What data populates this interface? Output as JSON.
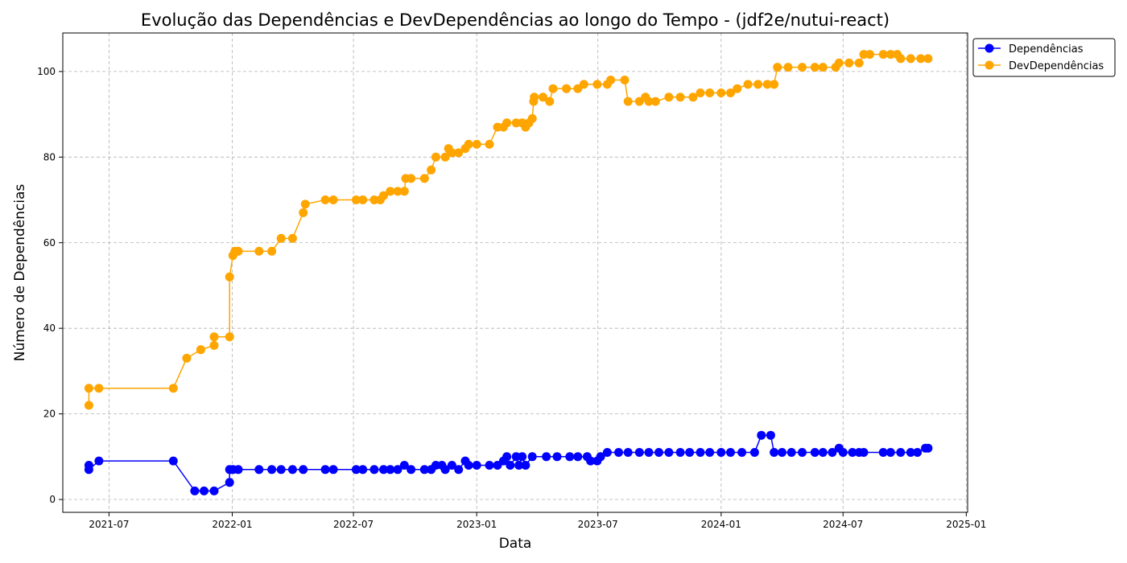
{
  "chart_data": {
    "type": "line",
    "title": "Evolução das Dependências e DevDependências ao longo do Tempo - (jdf2e/nutui-react)",
    "xlabel": "Data",
    "ylabel": "Número de Dependências",
    "x_ticks": [
      "2021-07",
      "2022-01",
      "2022-07",
      "2023-01",
      "2023-07",
      "2024-01",
      "2024-07",
      "2025-01"
    ],
    "x_tick_dates": [
      "2021-07-01",
      "2022-01-01",
      "2022-07-01",
      "2023-01-01",
      "2023-07-01",
      "2024-01-01",
      "2024-07-01",
      "2025-01-01"
    ],
    "xlim": [
      "2021-04-23",
      "2025-01-03"
    ],
    "y_ticks": [
      0,
      20,
      40,
      60,
      80,
      100
    ],
    "ylim": [
      -3,
      109
    ],
    "grid": true,
    "legend_position": "outside-top-right",
    "series": [
      {
        "name": "Dependências",
        "color": "#0000ff",
        "points": [
          [
            "2021-06-01",
            8
          ],
          [
            "2021-06-01",
            7
          ],
          [
            "2021-06-16",
            9
          ],
          [
            "2021-10-05",
            9
          ],
          [
            "2021-11-06",
            2
          ],
          [
            "2021-11-20",
            2
          ],
          [
            "2021-12-05",
            2
          ],
          [
            "2021-12-28",
            4
          ],
          [
            "2021-12-28",
            7
          ],
          [
            "2022-01-02",
            7
          ],
          [
            "2022-01-10",
            7
          ],
          [
            "2022-02-10",
            7
          ],
          [
            "2022-03-01",
            7
          ],
          [
            "2022-03-15",
            7
          ],
          [
            "2022-04-01",
            7
          ],
          [
            "2022-04-17",
            7
          ],
          [
            "2022-05-20",
            7
          ],
          [
            "2022-06-01",
            7
          ],
          [
            "2022-07-05",
            7
          ],
          [
            "2022-07-15",
            7
          ],
          [
            "2022-08-01",
            7
          ],
          [
            "2022-08-15",
            7
          ],
          [
            "2022-08-25",
            7
          ],
          [
            "2022-09-05",
            7
          ],
          [
            "2022-09-15",
            8
          ],
          [
            "2022-09-25",
            7
          ],
          [
            "2022-10-15",
            7
          ],
          [
            "2022-10-25",
            7
          ],
          [
            "2022-11-01",
            8
          ],
          [
            "2022-11-10",
            8
          ],
          [
            "2022-11-15",
            7
          ],
          [
            "2022-11-25",
            8
          ],
          [
            "2022-12-05",
            7
          ],
          [
            "2022-12-15",
            9
          ],
          [
            "2022-12-20",
            8
          ],
          [
            "2023-01-01",
            8
          ],
          [
            "2023-01-20",
            8
          ],
          [
            "2023-02-01",
            8
          ],
          [
            "2023-02-10",
            9
          ],
          [
            "2023-02-15",
            10
          ],
          [
            "2023-02-20",
            8
          ],
          [
            "2023-03-01",
            10
          ],
          [
            "2023-03-05",
            8
          ],
          [
            "2023-03-10",
            10
          ],
          [
            "2023-03-15",
            8
          ],
          [
            "2023-03-25",
            10
          ],
          [
            "2023-04-15",
            10
          ],
          [
            "2023-05-01",
            10
          ],
          [
            "2023-05-20",
            10
          ],
          [
            "2023-06-01",
            10
          ],
          [
            "2023-06-15",
            10
          ],
          [
            "2023-06-20",
            9
          ],
          [
            "2023-06-30",
            9
          ],
          [
            "2023-07-05",
            10
          ],
          [
            "2023-07-15",
            11
          ],
          [
            "2023-08-01",
            11
          ],
          [
            "2023-08-15",
            11
          ],
          [
            "2023-09-01",
            11
          ],
          [
            "2023-09-15",
            11
          ],
          [
            "2023-09-30",
            11
          ],
          [
            "2023-10-15",
            11
          ],
          [
            "2023-11-01",
            11
          ],
          [
            "2023-11-15",
            11
          ],
          [
            "2023-12-01",
            11
          ],
          [
            "2023-12-15",
            11
          ],
          [
            "2024-01-01",
            11
          ],
          [
            "2024-01-15",
            11
          ],
          [
            "2024-02-01",
            11
          ],
          [
            "2024-02-20",
            11
          ],
          [
            "2024-03-01",
            15
          ],
          [
            "2024-03-15",
            15
          ],
          [
            "2024-03-20",
            11
          ],
          [
            "2024-04-01",
            11
          ],
          [
            "2024-04-15",
            11
          ],
          [
            "2024-05-01",
            11
          ],
          [
            "2024-05-20",
            11
          ],
          [
            "2024-06-01",
            11
          ],
          [
            "2024-06-15",
            11
          ],
          [
            "2024-06-25",
            12
          ],
          [
            "2024-07-01",
            11
          ],
          [
            "2024-07-15",
            11
          ],
          [
            "2024-07-25",
            11
          ],
          [
            "2024-08-01",
            11
          ],
          [
            "2024-08-30",
            11
          ],
          [
            "2024-09-10",
            11
          ],
          [
            "2024-09-25",
            11
          ],
          [
            "2024-10-10",
            11
          ],
          [
            "2024-10-20",
            11
          ],
          [
            "2024-11-01",
            12
          ],
          [
            "2024-11-05",
            12
          ]
        ]
      },
      {
        "name": "DevDependências",
        "color": "#ffa500",
        "points": [
          [
            "2021-06-01",
            22
          ],
          [
            "2021-06-01",
            26
          ],
          [
            "2021-06-16",
            26
          ],
          [
            "2021-10-05",
            26
          ],
          [
            "2021-10-25",
            33
          ],
          [
            "2021-11-15",
            35
          ],
          [
            "2021-12-05",
            36
          ],
          [
            "2021-12-05",
            38
          ],
          [
            "2021-12-28",
            38
          ],
          [
            "2021-12-28",
            52
          ],
          [
            "2022-01-02",
            57
          ],
          [
            "2022-01-05",
            58
          ],
          [
            "2022-01-10",
            58
          ],
          [
            "2022-02-10",
            58
          ],
          [
            "2022-03-01",
            58
          ],
          [
            "2022-03-15",
            61
          ],
          [
            "2022-04-01",
            61
          ],
          [
            "2022-04-17",
            67
          ],
          [
            "2022-04-20",
            69
          ],
          [
            "2022-05-20",
            70
          ],
          [
            "2022-06-01",
            70
          ],
          [
            "2022-07-05",
            70
          ],
          [
            "2022-07-15",
            70
          ],
          [
            "2022-08-01",
            70
          ],
          [
            "2022-08-10",
            70
          ],
          [
            "2022-08-15",
            71
          ],
          [
            "2022-08-25",
            72
          ],
          [
            "2022-09-05",
            72
          ],
          [
            "2022-09-15",
            72
          ],
          [
            "2022-09-17",
            75
          ],
          [
            "2022-09-25",
            75
          ],
          [
            "2022-10-15",
            75
          ],
          [
            "2022-10-25",
            77
          ],
          [
            "2022-11-01",
            80
          ],
          [
            "2022-11-15",
            80
          ],
          [
            "2022-11-20",
            82
          ],
          [
            "2022-11-25",
            81
          ],
          [
            "2022-12-05",
            81
          ],
          [
            "2022-12-15",
            82
          ],
          [
            "2022-12-20",
            83
          ],
          [
            "2023-01-01",
            83
          ],
          [
            "2023-01-20",
            83
          ],
          [
            "2023-02-01",
            87
          ],
          [
            "2023-02-10",
            87
          ],
          [
            "2023-02-15",
            88
          ],
          [
            "2023-03-01",
            88
          ],
          [
            "2023-03-10",
            88
          ],
          [
            "2023-03-15",
            87
          ],
          [
            "2023-03-20",
            88
          ],
          [
            "2023-03-25",
            89
          ],
          [
            "2023-03-27",
            93
          ],
          [
            "2023-03-28",
            94
          ],
          [
            "2023-04-10",
            94
          ],
          [
            "2023-04-20",
            93
          ],
          [
            "2023-04-25",
            96
          ],
          [
            "2023-05-15",
            96
          ],
          [
            "2023-06-01",
            96
          ],
          [
            "2023-06-10",
            97
          ],
          [
            "2023-06-30",
            97
          ],
          [
            "2023-07-15",
            97
          ],
          [
            "2023-07-20",
            98
          ],
          [
            "2023-08-10",
            98
          ],
          [
            "2023-08-15",
            93
          ],
          [
            "2023-09-01",
            93
          ],
          [
            "2023-09-10",
            94
          ],
          [
            "2023-09-15",
            93
          ],
          [
            "2023-09-25",
            93
          ],
          [
            "2023-10-15",
            94
          ],
          [
            "2023-11-01",
            94
          ],
          [
            "2023-11-20",
            94
          ],
          [
            "2023-12-01",
            95
          ],
          [
            "2023-12-15",
            95
          ],
          [
            "2024-01-01",
            95
          ],
          [
            "2024-01-15",
            95
          ],
          [
            "2024-01-25",
            96
          ],
          [
            "2024-02-10",
            97
          ],
          [
            "2024-02-25",
            97
          ],
          [
            "2024-03-10",
            97
          ],
          [
            "2024-03-20",
            97
          ],
          [
            "2024-03-25",
            101
          ],
          [
            "2024-04-10",
            101
          ],
          [
            "2024-05-01",
            101
          ],
          [
            "2024-05-20",
            101
          ],
          [
            "2024-06-01",
            101
          ],
          [
            "2024-06-20",
            101
          ],
          [
            "2024-06-25",
            102
          ],
          [
            "2024-07-10",
            102
          ],
          [
            "2024-07-25",
            102
          ],
          [
            "2024-08-01",
            104
          ],
          [
            "2024-08-10",
            104
          ],
          [
            "2024-08-30",
            104
          ],
          [
            "2024-09-10",
            104
          ],
          [
            "2024-09-20",
            104
          ],
          [
            "2024-09-25",
            103
          ],
          [
            "2024-10-10",
            103
          ],
          [
            "2024-10-25",
            103
          ],
          [
            "2024-11-05",
            103
          ]
        ]
      }
    ]
  }
}
